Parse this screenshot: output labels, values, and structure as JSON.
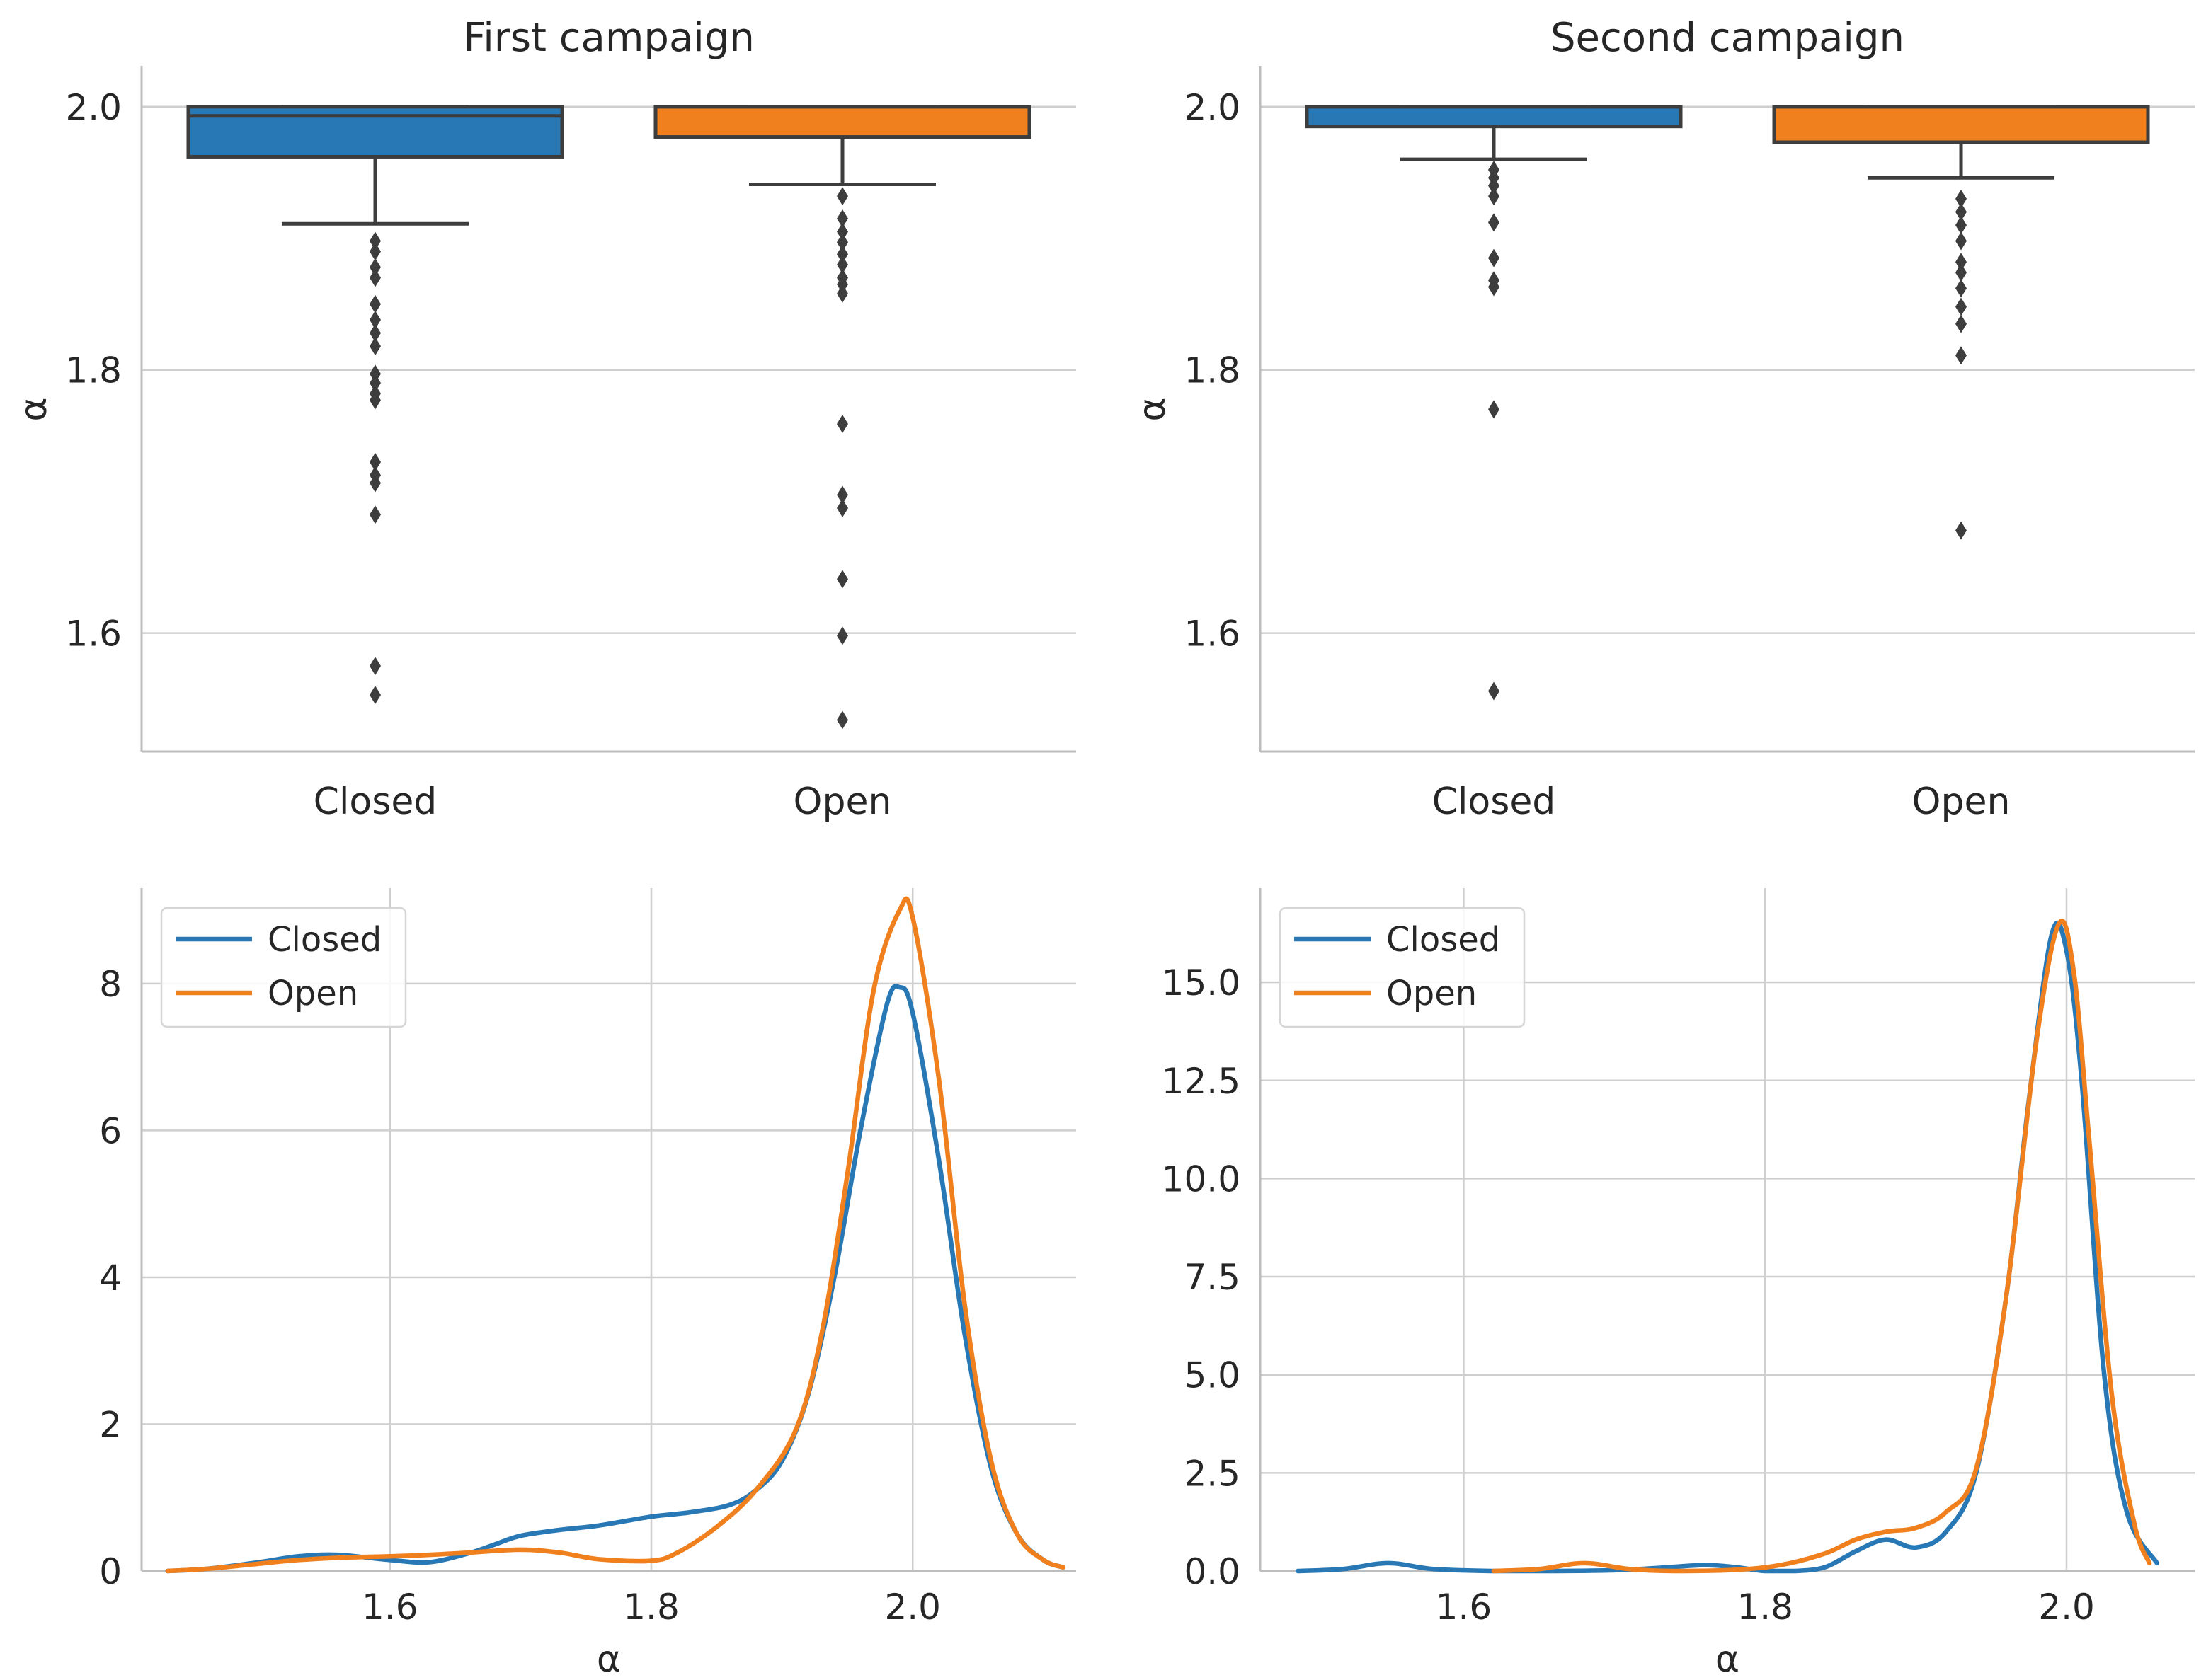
{
  "colors": {
    "closed": "#2878b5",
    "open": "#f07f1e",
    "outlier": "#3d3d3d"
  },
  "chart_data": [
    {
      "type": "box",
      "title": "First campaign",
      "xlabel": "",
      "ylabel": "α",
      "ylim": [
        1.51,
        2.03
      ],
      "yticks": [
        1.6,
        1.8,
        2.0
      ],
      "ytick_labels": [
        "1.6",
        "1.8",
        "2.0"
      ],
      "categories": [
        "Closed",
        "Open"
      ],
      "boxes": [
        {
          "name": "Closed",
          "whisker_low": 1.911,
          "q1": 1.962,
          "median": 1.993,
          "q3": 2.0,
          "whisker_high": 2.0,
          "outliers": [
            1.553,
            1.575,
            1.69,
            1.714,
            1.72,
            1.73,
            1.777,
            1.782,
            1.79,
            1.797,
            1.818,
            1.828,
            1.838,
            1.85,
            1.87,
            1.878,
            1.89,
            1.898
          ]
        },
        {
          "name": "Open",
          "whisker_low": 1.941,
          "q1": 1.977,
          "median": 2.0,
          "q3": 2.0,
          "whisker_high": 2.0,
          "outliers": [
            1.534,
            1.598,
            1.641,
            1.695,
            1.705,
            1.759,
            1.858,
            1.865,
            1.87,
            1.88,
            1.888,
            1.897,
            1.905,
            1.915,
            1.932
          ]
        }
      ]
    },
    {
      "type": "box",
      "title": "Second campaign",
      "xlabel": "",
      "ylabel": "α",
      "ylim": [
        1.51,
        2.03
      ],
      "yticks": [
        1.6,
        1.8,
        2.0
      ],
      "ytick_labels": [
        "1.6",
        "1.8",
        "2.0"
      ],
      "categories": [
        "Closed",
        "Open"
      ],
      "boxes": [
        {
          "name": "Closed",
          "whisker_low": 1.96,
          "q1": 1.985,
          "median": 2.0,
          "q3": 2.0,
          "whisker_high": 2.0,
          "outliers": [
            1.556,
            1.77,
            1.863,
            1.868,
            1.885,
            1.912,
            1.932,
            1.94,
            1.946,
            1.952
          ]
        },
        {
          "name": "Open",
          "whisker_low": 1.946,
          "q1": 1.973,
          "median": 2.0,
          "q3": 2.0,
          "whisker_high": 2.0,
          "outliers": [
            1.678,
            1.811,
            1.835,
            1.848,
            1.862,
            1.874,
            1.882,
            1.898,
            1.91,
            1.92,
            1.93
          ]
        }
      ]
    },
    {
      "type": "line",
      "title": "",
      "xlabel": "α",
      "ylabel": "",
      "xlim": [
        1.41,
        2.125
      ],
      "ylim": [
        0,
        9.3
      ],
      "xticks": [
        1.6,
        1.8,
        2.0
      ],
      "xtick_labels": [
        "1.6",
        "1.8",
        "2.0"
      ],
      "yticks": [
        0,
        2,
        4,
        6,
        8
      ],
      "ytick_labels": [
        "0",
        "2",
        "4",
        "6",
        "8"
      ],
      "legend": "top-left",
      "series": [
        {
          "name": "Closed",
          "x": [
            1.43,
            1.46,
            1.5,
            1.53,
            1.56,
            1.6,
            1.63,
            1.66,
            1.68,
            1.7,
            1.73,
            1.76,
            1.8,
            1.83,
            1.86,
            1.88,
            1.9,
            1.92,
            1.94,
            1.96,
            1.98,
            1.99,
            2.0,
            2.02,
            2.04,
            2.06,
            2.08,
            2.1,
            2.115
          ],
          "y": [
            0.0,
            0.03,
            0.12,
            0.2,
            0.22,
            0.15,
            0.12,
            0.24,
            0.36,
            0.48,
            0.56,
            0.62,
            0.74,
            0.8,
            0.9,
            1.1,
            1.5,
            2.4,
            4.0,
            6.0,
            7.7,
            7.95,
            7.6,
            5.6,
            3.2,
            1.4,
            0.5,
            0.15,
            0.05
          ]
        },
        {
          "name": "Open",
          "x": [
            1.43,
            1.46,
            1.5,
            1.53,
            1.56,
            1.6,
            1.63,
            1.66,
            1.7,
            1.73,
            1.76,
            1.8,
            1.82,
            1.85,
            1.88,
            1.91,
            1.93,
            1.95,
            1.97,
            1.99,
            2.0,
            2.02,
            2.04,
            2.06,
            2.08,
            2.1,
            2.115
          ],
          "y": [
            0.0,
            0.03,
            0.1,
            0.15,
            0.18,
            0.2,
            0.22,
            0.25,
            0.29,
            0.25,
            0.16,
            0.14,
            0.25,
            0.6,
            1.1,
            1.9,
            3.2,
            5.4,
            7.9,
            9.0,
            8.9,
            6.7,
            3.6,
            1.5,
            0.5,
            0.15,
            0.05
          ]
        }
      ]
    },
    {
      "type": "line",
      "title": "",
      "xlabel": "α",
      "ylabel": "",
      "xlim": [
        1.465,
        2.085
      ],
      "ylim": [
        0,
        17.4
      ],
      "xticks": [
        1.6,
        1.8,
        2.0
      ],
      "xtick_labels": [
        "1.6",
        "1.8",
        "2.0"
      ],
      "yticks": [
        0.0,
        2.5,
        5.0,
        7.5,
        10.0,
        12.5,
        15.0
      ],
      "ytick_labels": [
        "0.0",
        "2.5",
        "5.0",
        "7.5",
        "10.0",
        "12.5",
        "15.0"
      ],
      "legend": "top-left",
      "series": [
        {
          "name": "Closed",
          "x": [
            1.49,
            1.52,
            1.55,
            1.58,
            1.62,
            1.66,
            1.7,
            1.73,
            1.76,
            1.78,
            1.8,
            1.82,
            1.84,
            1.86,
            1.88,
            1.9,
            1.92,
            1.94,
            1.96,
            1.975,
            1.99,
            2.0,
            2.01,
            2.025,
            2.04,
            2.06
          ],
          "y": [
            0.0,
            0.05,
            0.2,
            0.05,
            0.0,
            0.0,
            0.02,
            0.08,
            0.15,
            0.1,
            0.0,
            0.0,
            0.1,
            0.5,
            0.8,
            0.6,
            1.0,
            2.5,
            7.0,
            12.0,
            16.2,
            15.8,
            12.5,
            5.0,
            1.5,
            0.2
          ]
        },
        {
          "name": "Open",
          "x": [
            1.62,
            1.65,
            1.68,
            1.71,
            1.74,
            1.78,
            1.81,
            1.84,
            1.86,
            1.88,
            1.9,
            1.92,
            1.94,
            1.96,
            1.98,
            1.995,
            2.005,
            2.015,
            2.03,
            2.045,
            2.055
          ],
          "y": [
            0.0,
            0.05,
            0.2,
            0.05,
            0.0,
            0.03,
            0.15,
            0.45,
            0.8,
            1.0,
            1.1,
            1.5,
            2.6,
            7.0,
            13.5,
            16.5,
            15.2,
            11.0,
            4.5,
            1.2,
            0.2
          ]
        }
      ]
    }
  ]
}
